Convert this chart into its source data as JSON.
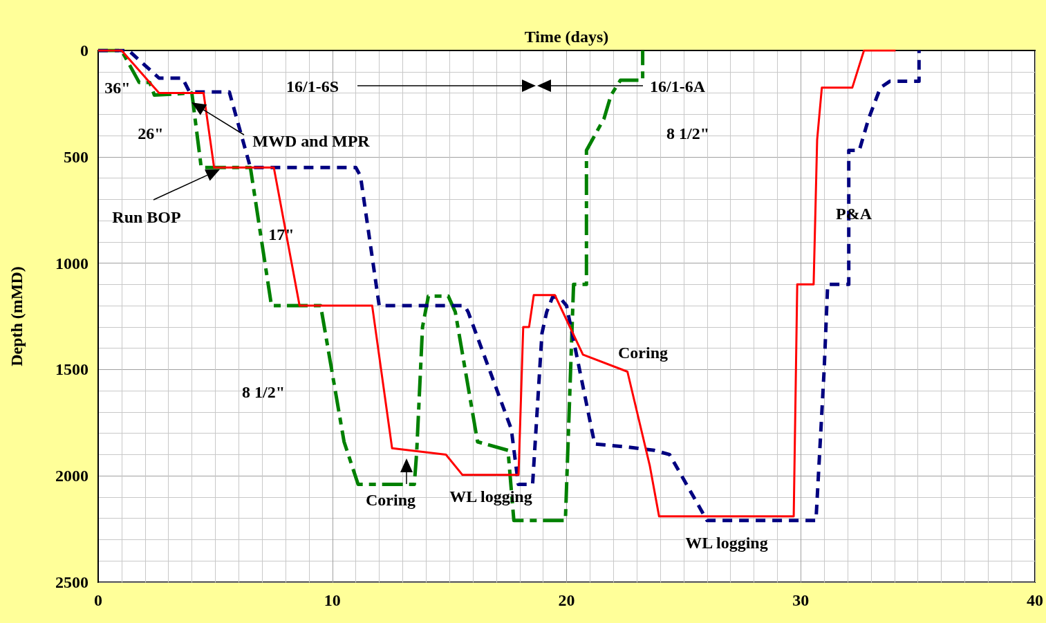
{
  "chart_data": {
    "type": "line",
    "xlabel": "Time (days)",
    "ylabel": "Depth (mMD)",
    "xlim": [
      0,
      40
    ],
    "xticks": [
      0,
      10,
      20,
      30,
      40
    ],
    "ylim": [
      2500,
      0
    ],
    "yticks": [
      0,
      500,
      1000,
      1500,
      2000,
      2500
    ],
    "grid": true,
    "marker": "none",
    "series": [
      {
        "color": "#008000",
        "line_style": "dashed",
        "x": [
          0,
          1,
          1.75,
          2.2,
          2.4,
          4.0,
          4.4,
          6.5,
          7.4,
          9.5,
          10.5,
          11.1,
          13.5,
          13.6,
          13.85,
          14.1,
          14.95,
          15.25,
          16.2,
          17.5,
          17.75,
          19.95,
          20.3,
          20.85,
          20.85,
          21.6,
          21.9,
          22.3,
          23.25,
          23.25
        ],
        "values": [
          0,
          0,
          150,
          150,
          210,
          200,
          550,
          550,
          1200,
          1200,
          1840,
          2040,
          2040,
          1890,
          1300,
          1155,
          1155,
          1230,
          1840,
          1880,
          2210,
          2210,
          1100,
          1100,
          470,
          320,
          210,
          140,
          140,
          0
        ]
      },
      {
        "color": "#000080",
        "line_style": "dashed",
        "x": [
          0,
          1.3,
          2.6,
          3.6,
          3.9,
          5.6,
          6.5,
          11.0,
          11.2,
          12.0,
          15.65,
          15.8,
          17.64,
          17.94,
          18.55,
          18.95,
          19.15,
          19.4,
          19.7,
          20.0,
          21.2,
          22.65,
          23.75,
          24.4,
          26.0,
          30.65,
          31.0,
          31.15,
          32.05,
          32.05,
          32.5,
          32.9,
          33.4,
          33.8,
          34.3,
          35.05,
          35.05
        ],
        "values": [
          0,
          0,
          130,
          130,
          195,
          195,
          550,
          550,
          590,
          1200,
          1200,
          1230,
          1780,
          2040,
          2040,
          1330,
          1230,
          1160,
          1160,
          1200,
          1850,
          1865,
          1880,
          1900,
          2210,
          2210,
          1500,
          1100,
          1100,
          470,
          470,
          320,
          175,
          145,
          145,
          145,
          0
        ]
      },
      {
        "color": "#ff0000",
        "line_style": "solid",
        "x": [
          0,
          1,
          2.2,
          2.6,
          4.5,
          4.95,
          7.5,
          8.6,
          11.7,
          12.55,
          14.85,
          15.55,
          17.95,
          18.15,
          18.4,
          18.6,
          19.5,
          20.7,
          22.6,
          23.55,
          23.95,
          29.7,
          29.85,
          30.55,
          30.7,
          30.9,
          32.2,
          32.7,
          34.05
        ],
        "values": [
          0,
          0,
          150,
          200,
          200,
          550,
          550,
          1200,
          1200,
          1870,
          1900,
          1995,
          1995,
          1300,
          1300,
          1150,
          1150,
          1430,
          1510,
          1950,
          2190,
          2190,
          1100,
          1100,
          420,
          175,
          175,
          0,
          0
        ]
      }
    ],
    "annotations": [
      "36\"",
      "26\"",
      {
        "text": "MWD and MPR",
        "x": 4.0,
        "y": 245
      },
      "Run BOP",
      "17\"",
      "8 1/2\"",
      "16/1-6S",
      "16/1-6A",
      "8 1/2\"",
      "Coring",
      "WL logging",
      "Coring",
      "WL logging",
      "P&A"
    ]
  }
}
